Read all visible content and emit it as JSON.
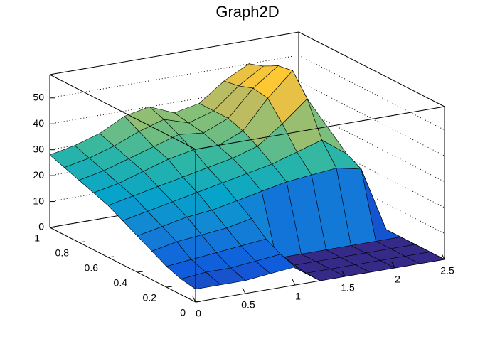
{
  "chart_data": {
    "type": "surface",
    "title": "Graph2D",
    "x": [
      0,
      0.25,
      0.5,
      0.75,
      1,
      1.25,
      1.5,
      1.75,
      2,
      2.25,
      2.5
    ],
    "y": [
      0,
      0.1,
      0.2,
      0.3,
      0.4,
      0.5,
      0.6,
      0.7,
      0.8,
      0.9,
      1
    ],
    "z": [
      [
        5,
        5,
        5,
        6,
        7,
        0,
        0,
        0,
        0,
        0,
        0
      ],
      [
        6,
        7,
        7,
        8,
        9,
        0,
        0,
        0,
        0,
        0,
        0
      ],
      [
        8,
        9,
        10,
        11,
        12,
        0,
        0,
        0,
        0,
        0,
        0
      ],
      [
        11,
        13,
        14,
        15,
        17,
        0,
        0,
        0,
        0,
        0,
        0
      ],
      [
        14,
        16,
        18,
        19,
        21,
        23,
        25,
        26,
        27,
        25,
        0
      ],
      [
        17,
        19,
        21,
        23,
        25,
        27,
        29,
        32,
        35,
        28,
        0
      ],
      [
        20,
        22,
        24,
        26,
        28,
        30,
        33,
        40,
        48,
        33,
        0
      ],
      [
        22,
        24,
        27,
        30,
        32,
        32,
        36,
        47,
        56,
        36,
        0
      ],
      [
        24,
        26,
        29,
        32,
        35,
        34,
        38,
        48,
        55,
        37,
        0
      ],
      [
        26,
        28,
        31,
        35,
        38,
        35,
        38,
        46,
        52,
        36,
        0
      ],
      [
        28,
        30,
        33,
        38,
        40,
        36,
        38,
        45,
        50,
        35,
        0
      ]
    ],
    "xlim": [
      0,
      2.5
    ],
    "ylim": [
      0,
      1
    ],
    "zlim": [
      0,
      59
    ],
    "xticks": [
      0,
      0.5,
      1,
      1.5,
      2,
      2.5
    ],
    "yticks": [
      0,
      0.2,
      0.4,
      0.6,
      0.8,
      1
    ],
    "zticks": [
      0,
      10,
      20,
      30,
      40,
      50
    ],
    "grid": true,
    "palette": [
      "#352a87",
      "#0f5cdd",
      "#1481d6",
      "#06a4ca",
      "#2eb7a4",
      "#87bf77",
      "#d1bb59",
      "#fec832",
      "#f9fb0e"
    ]
  }
}
